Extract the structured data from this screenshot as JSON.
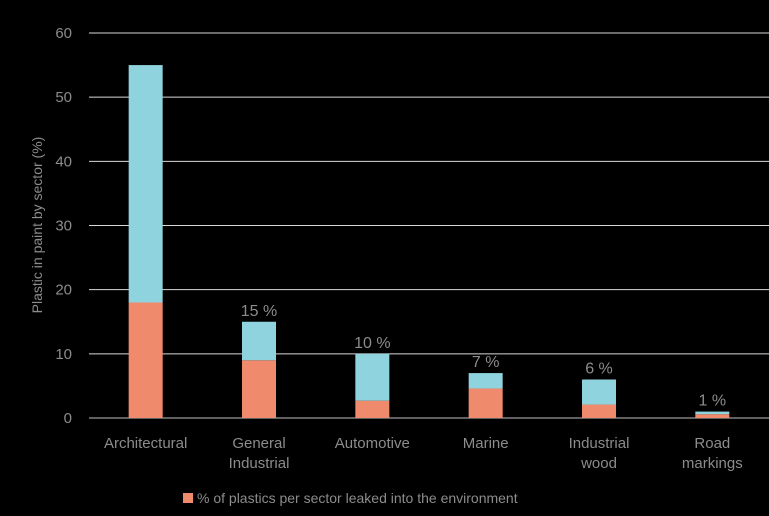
{
  "chart_data": {
    "type": "bar",
    "stacked": true,
    "categories": [
      [
        "Architectural"
      ],
      [
        "General",
        "Industrial"
      ],
      [
        "Automotive"
      ],
      [
        "Marine"
      ],
      [
        "Industrial",
        "wood"
      ],
      [
        "Road",
        "markings"
      ]
    ],
    "series": [
      {
        "name": "% of plastics per sector leaked into the environment",
        "values": [
          18,
          9,
          2.7,
          4.6,
          2.1,
          0.6
        ],
        "color": "#f08a6c"
      },
      {
        "values": [
          37,
          6,
          7.3,
          2.4,
          3.9,
          0.4
        ],
        "color": "#8ed3de"
      }
    ],
    "totals": [
      55,
      15,
      10,
      7,
      6,
      1
    ],
    "data_labels": [
      "",
      "15 %",
      "10 %",
      "7 %",
      "6 %",
      "1 %"
    ],
    "ylabel": "Plastic in paint by sector (%)",
    "ylim": [
      0,
      60
    ],
    "yticks": [
      0,
      10,
      20,
      30,
      40,
      50,
      60
    ],
    "grid": true,
    "legend": {
      "position": "bottom"
    },
    "colors": {
      "background": "#000000",
      "grid": "#d9d9d9",
      "axis": "#bfbfbf",
      "text": "#8c8c8c"
    }
  }
}
